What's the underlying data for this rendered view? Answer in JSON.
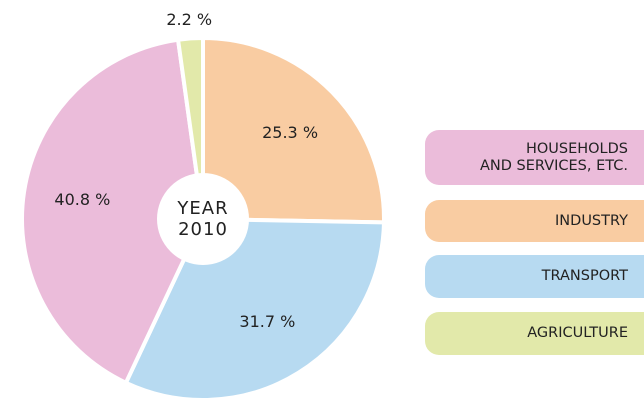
{
  "chart_data": {
    "type": "pie",
    "center_label": [
      "YEAR",
      "2010"
    ],
    "categories": [
      "HOUSEHOLDS\nAND SERVICES, ETC.",
      "INDUSTRY",
      "TRANSPORT",
      "AGRICULTURE"
    ],
    "values": [
      40.8,
      25.3,
      31.7,
      2.2
    ],
    "value_labels": [
      "40.8 %",
      "25.3 %",
      "31.7 %",
      "2.2 %"
    ],
    "colors": [
      "#ebbcda",
      "#f9cca2",
      "#b7daf1",
      "#e2e9aa"
    ]
  }
}
